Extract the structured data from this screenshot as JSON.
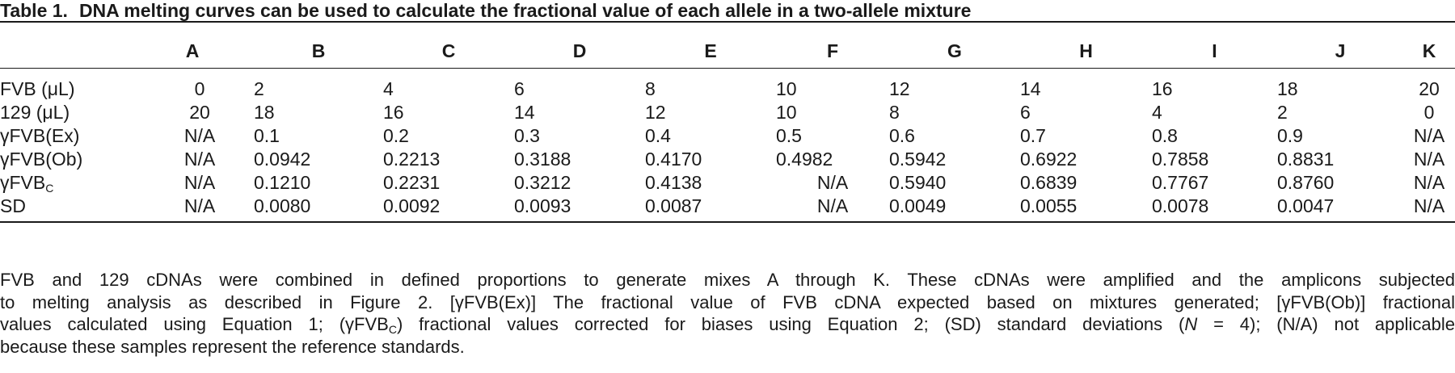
{
  "table": {
    "number": "Table 1.",
    "title": "DNA melting curves can be used to calculate the fractional value of each allele in a two-allele mixture",
    "columns": [
      "A",
      "B",
      "C",
      "D",
      "E",
      "F",
      "G",
      "H",
      "I",
      "J",
      "K"
    ],
    "rows": [
      {
        "label": "FVB (μL)",
        "values": [
          "0",
          "2",
          "4",
          "6",
          "8",
          "10",
          "12",
          "14",
          "16",
          "18",
          "20"
        ]
      },
      {
        "label": "129 (μL)",
        "values": [
          "20",
          "18",
          "16",
          "14",
          "12",
          "10",
          "8",
          "6",
          "4",
          "2",
          "0"
        ]
      },
      {
        "label": "γFVB(Ex)",
        "values": [
          "N/A",
          "0.1",
          "0.2",
          "0.3",
          "0.4",
          "0.5",
          "0.6",
          "0.7",
          "0.8",
          "0.9",
          "N/A"
        ]
      },
      {
        "label": "γFVB(Ob)",
        "values": [
          "N/A",
          "0.0942",
          "0.2213",
          "0.3188",
          "0.4170",
          "0.4982",
          "0.5942",
          "0.6922",
          "0.7858",
          "0.8831",
          "N/A"
        ]
      },
      {
        "label": "γFVB",
        "label_sub": "C",
        "values": [
          "N/A",
          "0.1210",
          "0.2231",
          "0.3212",
          "0.4138",
          "N/A",
          "0.5940",
          "0.6839",
          "0.7767",
          "0.8760",
          "N/A"
        ]
      },
      {
        "label": "SD",
        "values": [
          "N/A",
          "0.0080",
          "0.0092",
          "0.0093",
          "0.0087",
          "N/A",
          "0.0049",
          "0.0055",
          "0.0078",
          "0.0047",
          "N/A"
        ]
      }
    ]
  },
  "caption": {
    "line1": "FVB and 129 cDNAs were combined in defined proportions to generate mixes A through K. These cDNAs were amplified and the amplicons subjected",
    "line2": "to melting analysis as described in Figure 2. [γFVB(Ex)] The fractional value of FVB cDNA expected based on mixtures generated; [γFVB(Ob)] fractional",
    "line3a": "values calculated using Equation 1; (γFVB",
    "line3sub": "C",
    "line3b": ") fractional values corrected for biases using Equation 2; (SD) standard deviations (",
    "line3n": "N",
    "line3c": " = 4); (N/A) not applicable",
    "line4": "because these samples represent the reference standards."
  }
}
